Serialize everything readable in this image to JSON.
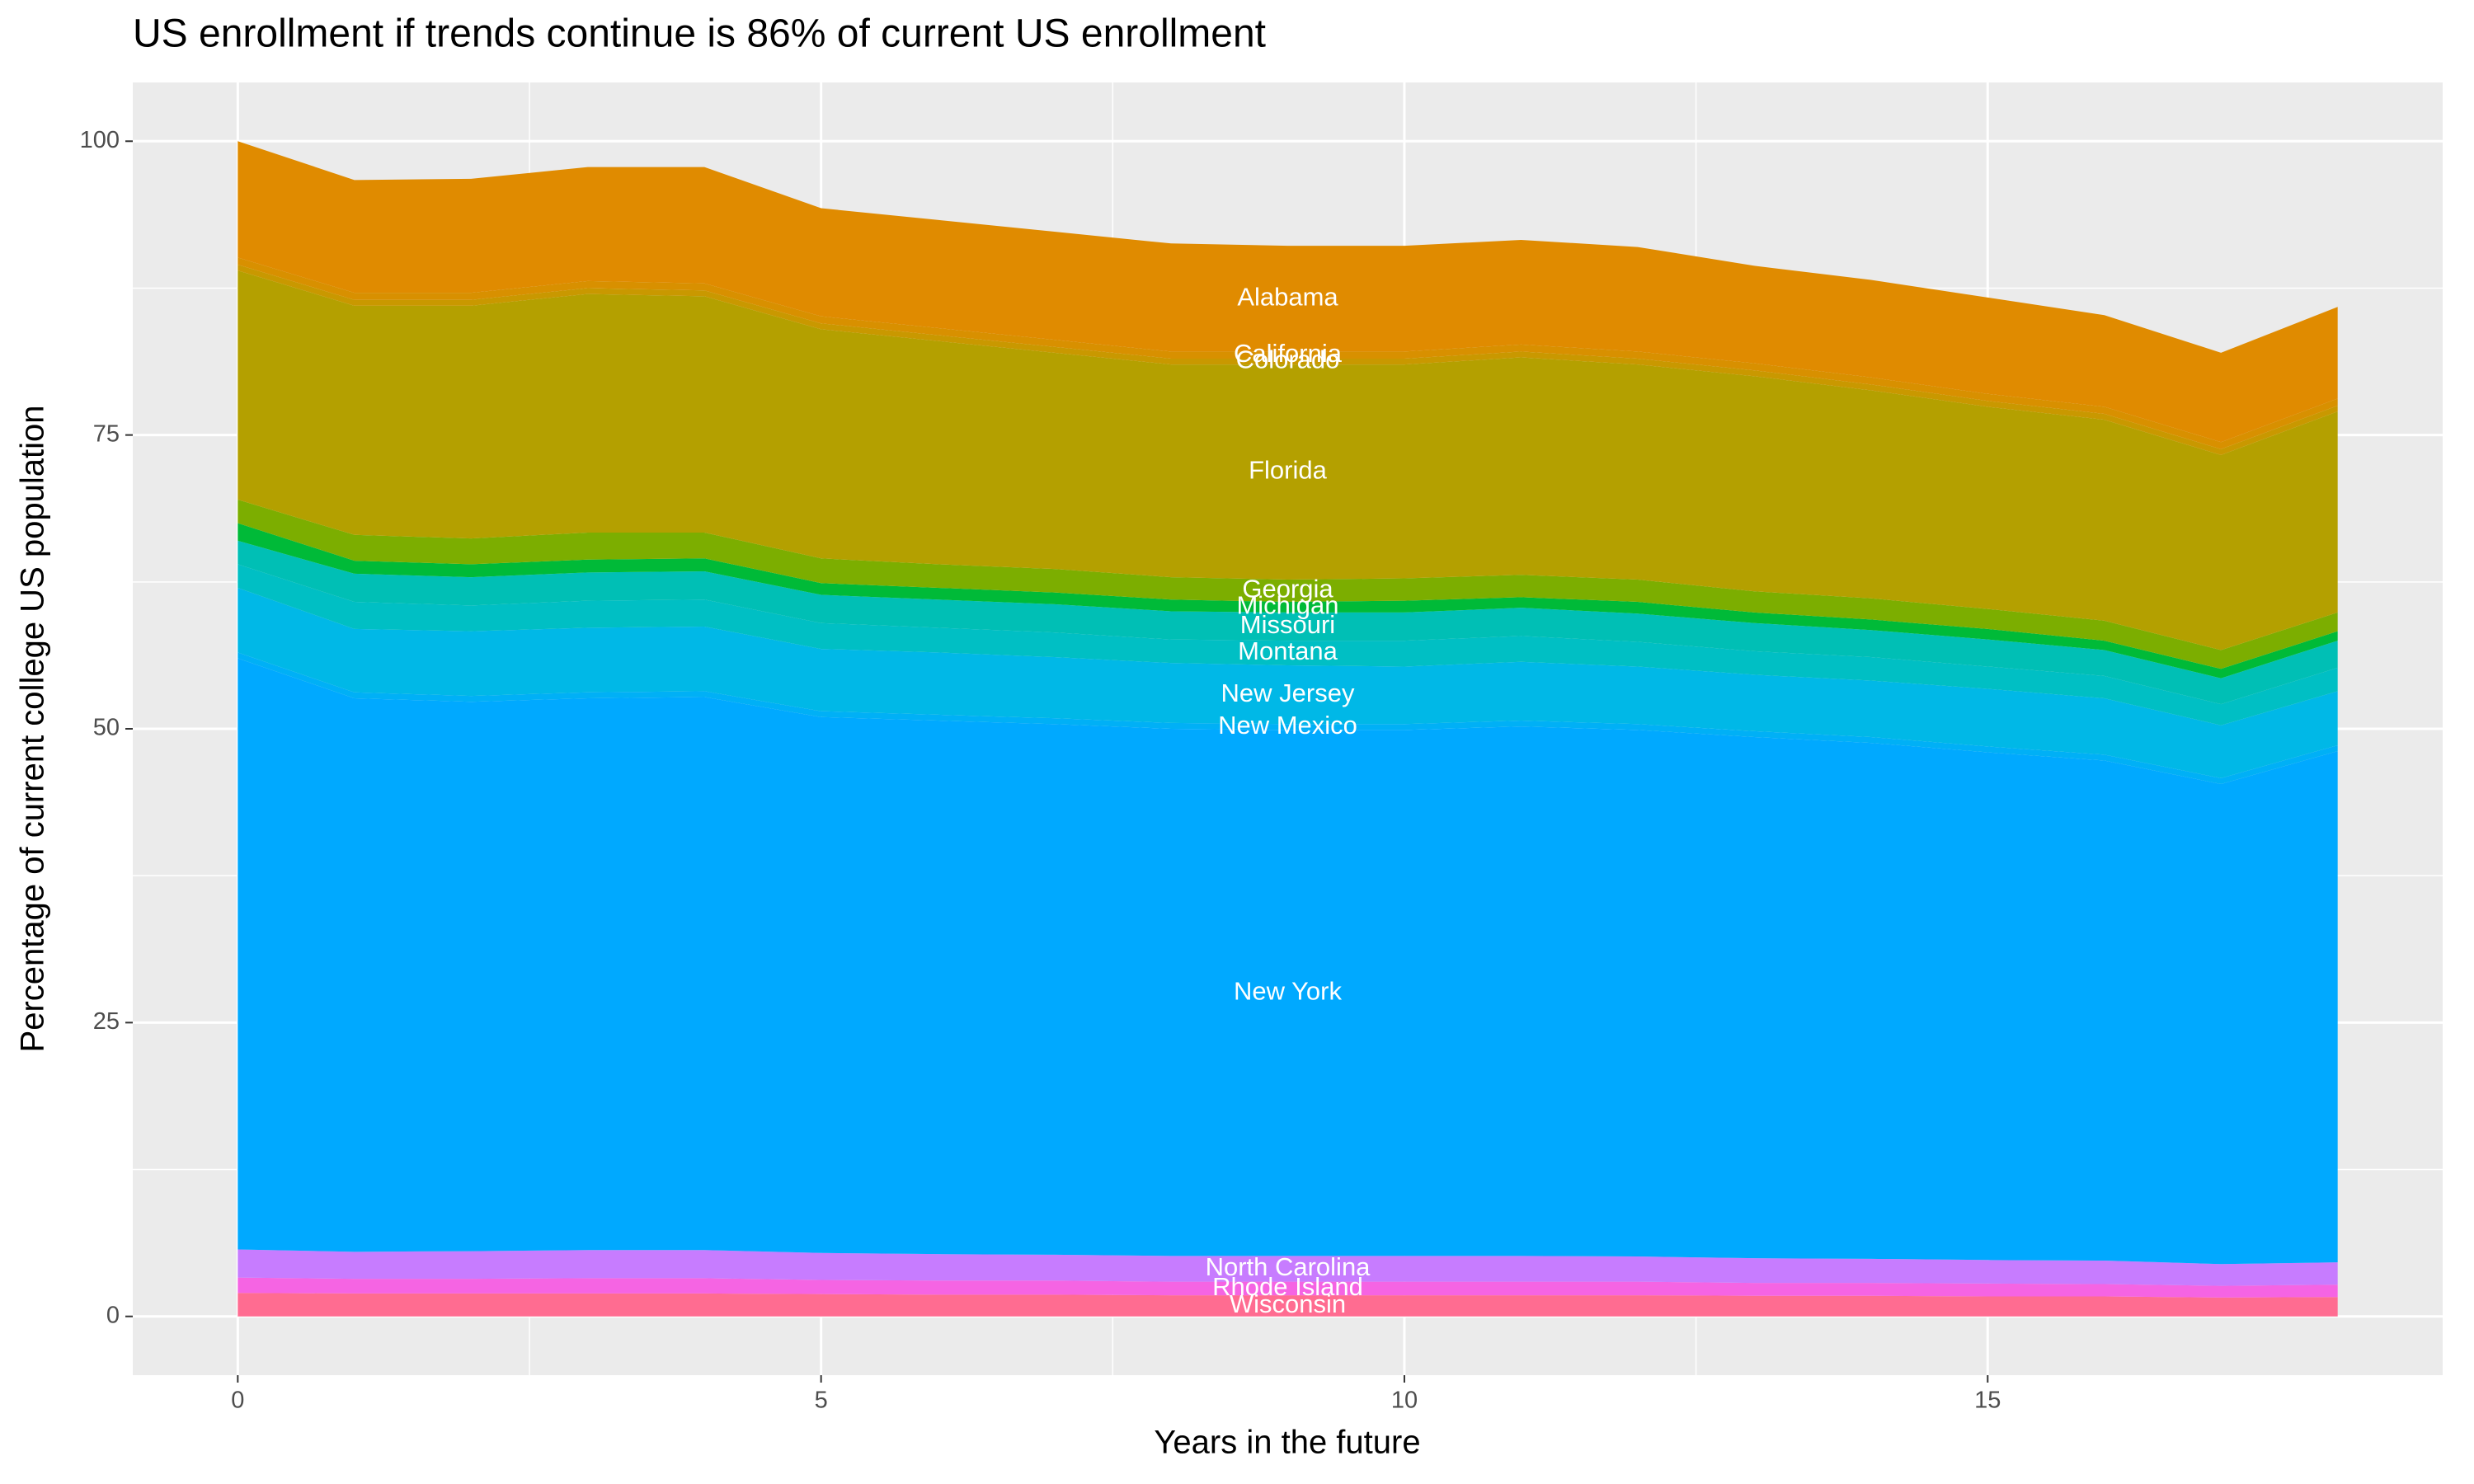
{
  "chart_data": {
    "type": "stacked-area",
    "title": "US enrollment if trends continue is 86% of current US enrollment",
    "x_label": "Years in the future",
    "y_label": "Percentage of current college US population",
    "x": [
      0,
      1,
      2,
      3,
      4,
      5,
      6,
      7,
      8,
      9,
      10,
      11,
      12,
      13,
      14,
      15,
      16,
      17,
      18
    ],
    "xlim": [
      -0.9,
      18.9
    ],
    "xticks": [
      0,
      5,
      10,
      15
    ],
    "ylim": [
      -5,
      105
    ],
    "yticks": [
      0,
      25,
      50,
      75,
      100
    ],
    "grid": true,
    "series": [
      {
        "name": "Wisconsin",
        "color": "#FF6C91",
        "values": [
          2.0,
          1.95,
          1.95,
          1.95,
          1.95,
          1.9,
          1.85,
          1.85,
          1.8,
          1.8,
          1.8,
          1.8,
          1.8,
          1.75,
          1.75,
          1.7,
          1.7,
          1.6,
          1.65
        ]
      },
      {
        "name": "Rhode Island",
        "color": "#F564E3",
        "values": [
          1.3,
          1.25,
          1.25,
          1.3,
          1.3,
          1.2,
          1.2,
          1.2,
          1.15,
          1.15,
          1.15,
          1.15,
          1.15,
          1.1,
          1.1,
          1.1,
          1.05,
          1.0,
          1.05
        ]
      },
      {
        "name": "North Carolina",
        "color": "#C77CFF",
        "values": [
          2.4,
          2.3,
          2.35,
          2.4,
          2.4,
          2.3,
          2.25,
          2.2,
          2.2,
          2.2,
          2.2,
          2.2,
          2.15,
          2.1,
          2.05,
          2.0,
          2.0,
          1.85,
          1.9
        ]
      },
      {
        "name": "New York",
        "color": "#00A9FF",
        "values": [
          50.3,
          47.1,
          46.75,
          46.95,
          47.05,
          45.6,
          45.4,
          45.15,
          44.85,
          44.75,
          44.75,
          45.05,
          44.8,
          44.35,
          43.9,
          43.2,
          42.55,
          40.85,
          43.5
        ]
      },
      {
        "name": "New Mexico",
        "color": "#00B0F6",
        "values": [
          0.5,
          0.5,
          0.5,
          0.5,
          0.5,
          0.5,
          0.5,
          0.5,
          0.5,
          0.5,
          0.5,
          0.5,
          0.5,
          0.5,
          0.5,
          0.5,
          0.5,
          0.5,
          0.5
        ]
      },
      {
        "name": "New Jersey",
        "color": "#00B8E7",
        "values": [
          5.5,
          5.4,
          5.5,
          5.5,
          5.5,
          5.3,
          5.3,
          5.2,
          5.1,
          5.0,
          4.9,
          5.0,
          4.9,
          4.8,
          4.8,
          4.9,
          4.8,
          4.5,
          4.6
        ]
      },
      {
        "name": "Montana",
        "color": "#00BFC4",
        "values": [
          2.0,
          2.3,
          2.2,
          2.3,
          2.3,
          2.2,
          2.1,
          2.1,
          2.0,
          2.1,
          2.2,
          2.2,
          2.1,
          2.0,
          2.0,
          1.9,
          1.9,
          1.8,
          2.0
        ]
      },
      {
        "name": "Missouri",
        "color": "#00BFB5",
        "values": [
          2.0,
          2.4,
          2.4,
          2.4,
          2.4,
          2.4,
          2.4,
          2.4,
          2.4,
          2.4,
          2.4,
          2.4,
          2.4,
          2.4,
          2.3,
          2.3,
          2.2,
          2.2,
          2.3
        ]
      },
      {
        "name": "Michigan",
        "color": "#00BA38",
        "values": [
          1.5,
          1.1,
          1.1,
          1.1,
          1.1,
          1.0,
          1.0,
          1.0,
          1.0,
          0.9,
          1.0,
          0.9,
          1.0,
          0.9,
          0.9,
          0.9,
          0.8,
          0.8,
          0.8
        ]
      },
      {
        "name": "Georgia",
        "color": "#7CAE00",
        "values": [
          2.0,
          2.2,
          2.2,
          2.3,
          2.2,
          2.1,
          2.0,
          2.0,
          1.9,
          1.9,
          1.9,
          1.9,
          1.9,
          1.8,
          1.8,
          1.7,
          1.7,
          1.6,
          1.6
        ]
      },
      {
        "name": "Florida",
        "color": "#B4A000",
        "values": [
          19.5,
          19.5,
          19.8,
          20.3,
          20.1,
          19.5,
          19.0,
          18.4,
          18.1,
          18.3,
          18.2,
          18.5,
          18.3,
          18.3,
          17.7,
          17.2,
          17.1,
          16.6,
          17.1
        ]
      },
      {
        "name": "Colorado",
        "color": "#C99800",
        "values": [
          0.5,
          0.5,
          0.5,
          0.5,
          0.5,
          0.5,
          0.5,
          0.5,
          0.5,
          0.5,
          0.5,
          0.5,
          0.5,
          0.5,
          0.5,
          0.5,
          0.5,
          0.5,
          0.5
        ]
      },
      {
        "name": "California",
        "color": "#D89000",
        "values": [
          0.6,
          0.6,
          0.6,
          0.6,
          0.6,
          0.6,
          0.6,
          0.6,
          0.6,
          0.6,
          0.6,
          0.6,
          0.6,
          0.6,
          0.6,
          0.6,
          0.6,
          0.6,
          0.6
        ]
      },
      {
        "name": "Alabama",
        "color": "#E08B00",
        "values": [
          9.9,
          9.6,
          9.7,
          9.7,
          9.9,
          9.2,
          9.2,
          9.2,
          9.2,
          9.0,
          9.0,
          8.9,
          8.9,
          8.3,
          8.3,
          8.2,
          7.8,
          7.6,
          7.8
        ]
      }
    ]
  }
}
